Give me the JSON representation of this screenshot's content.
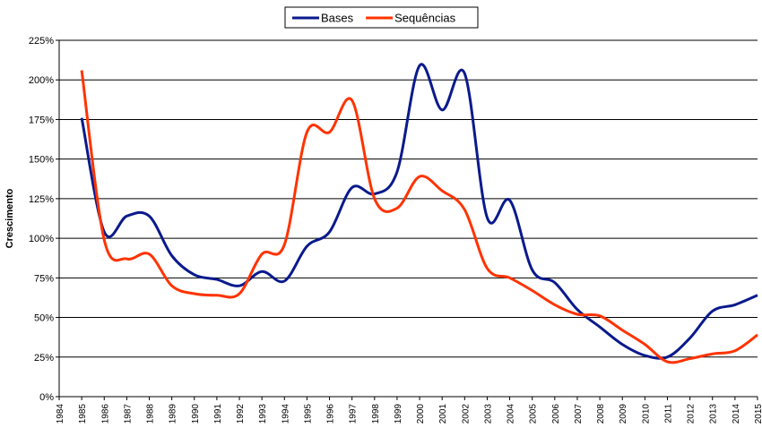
{
  "chart_data": {
    "type": "line",
    "y_label": "Crescimento",
    "x": [
      1985,
      1986,
      1987,
      1988,
      1989,
      1990,
      1991,
      1992,
      1993,
      1994,
      1995,
      1996,
      1997,
      1998,
      1999,
      2000,
      2001,
      2002,
      2003,
      2004,
      2005,
      2006,
      2007,
      2008,
      2009,
      2010,
      2011,
      2012,
      2013,
      2014,
      2015
    ],
    "series": [
      {
        "name": "Bases",
        "color": "#0a1a8c",
        "values": [
          176,
          104,
          114,
          114,
          89,
          77,
          74,
          70,
          79,
          73,
          95,
          104,
          132,
          128,
          142,
          209,
          181,
          204,
          113,
          124,
          80,
          72,
          55,
          44,
          33,
          26,
          25,
          37,
          54,
          58,
          64
        ]
      },
      {
        "name": "Sequências",
        "color": "#ff3300",
        "values": [
          206,
          99,
          87,
          90,
          70,
          65,
          64,
          65,
          90,
          96,
          167,
          167,
          187,
          125,
          119,
          139,
          130,
          118,
          81,
          75,
          67,
          58,
          52,
          51,
          42,
          33,
          22,
          24,
          27,
          29,
          39
        ]
      }
    ],
    "xlim": [
      1984,
      2015
    ],
    "xticks": [
      1984,
      1985,
      1986,
      1987,
      1988,
      1989,
      1990,
      1991,
      1992,
      1993,
      1994,
      1995,
      1996,
      1997,
      1998,
      1999,
      2000,
      2001,
      2002,
      2003,
      2004,
      2005,
      2006,
      2007,
      2008,
      2009,
      2010,
      2011,
      2012,
      2013,
      2014,
      2015
    ],
    "ylim": [
      0,
      225
    ],
    "yticks": [
      {
        "value": 0,
        "label": "0%"
      },
      {
        "value": 25,
        "label": "25%"
      },
      {
        "value": 50,
        "label": "50%"
      },
      {
        "value": 75,
        "label": "75%"
      },
      {
        "value": 100,
        "label": "100%"
      },
      {
        "value": 125,
        "label": "125%"
      },
      {
        "value": 150,
        "label": "150%"
      },
      {
        "value": 175,
        "label": "175%"
      },
      {
        "value": 200,
        "label": "200%"
      },
      {
        "value": 225,
        "label": "225%"
      }
    ],
    "grid": true,
    "legend": "top"
  }
}
